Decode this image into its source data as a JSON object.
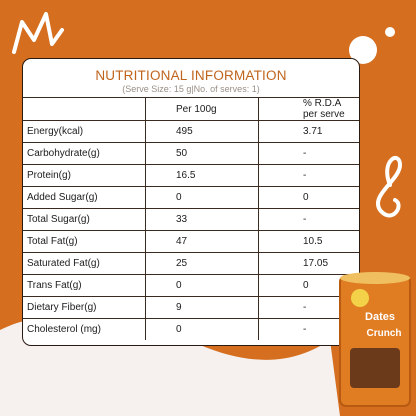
{
  "table": {
    "title": "NUTRITIONAL INFORMATION",
    "subtitle": "(Serve Size: 15 g|No. of serves: 1)",
    "header": [
      "",
      "Per 100g",
      "% R.D.A per serve"
    ],
    "rows": [
      [
        "Energy(kcal)",
        "495",
        "3.71"
      ],
      [
        "Carbohydrate(g)",
        "50",
        "-"
      ],
      [
        "Protein(g)",
        "16.5",
        "-"
      ],
      [
        "Added Sugar(g)",
        "0",
        "0"
      ],
      [
        "Total Sugar(g)",
        "33",
        "-"
      ],
      [
        "Total Fat(g)",
        "47",
        "10.5"
      ],
      [
        "Saturated Fat(g)",
        "25",
        "17.05"
      ],
      [
        "Trans Fat(g)",
        "0",
        "0"
      ],
      [
        "Dietary Fiber(g)",
        "9",
        "-"
      ],
      [
        "Cholesterol (mg)",
        "0",
        "-"
      ]
    ]
  },
  "product": {
    "label": [
      "Dates",
      "Crunch"
    ]
  }
}
